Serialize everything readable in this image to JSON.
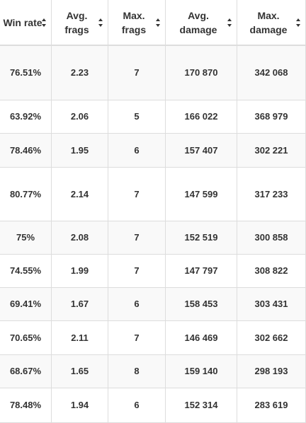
{
  "colors": {
    "win_rate": "#9c27b0",
    "averages": "#c84fd0",
    "max_values": "#333333",
    "border": "#dddddd",
    "stripe": "#f9f9f9"
  },
  "headers": [
    {
      "label": "Win rate",
      "icon": "sort-icon"
    },
    {
      "label": "Avg. frags",
      "icon": "sort-icon"
    },
    {
      "label": "Max. frags",
      "icon": "sort-icon"
    },
    {
      "label": "Avg. damage",
      "icon": "sort-icon"
    },
    {
      "label": "Max. damage",
      "icon": "sort-icon"
    }
  ],
  "rows": [
    {
      "win_rate": "76.51%",
      "avg_frags": "2.23",
      "max_frags": "7",
      "avg_damage": "170 870",
      "max_damage": "342 068"
    },
    {
      "win_rate": "63.92%",
      "avg_frags": "2.06",
      "max_frags": "5",
      "avg_damage": "166 022",
      "max_damage": "368 979"
    },
    {
      "win_rate": "78.46%",
      "avg_frags": "1.95",
      "max_frags": "6",
      "avg_damage": "157 407",
      "max_damage": "302 221"
    },
    {
      "win_rate": "80.77%",
      "avg_frags": "2.14",
      "max_frags": "7",
      "avg_damage": "147 599",
      "max_damage": "317 233"
    },
    {
      "win_rate": "75%",
      "avg_frags": "2.08",
      "max_frags": "7",
      "avg_damage": "152 519",
      "max_damage": "300 858"
    },
    {
      "win_rate": "74.55%",
      "avg_frags": "1.99",
      "max_frags": "7",
      "avg_damage": "147 797",
      "max_damage": "308 822"
    },
    {
      "win_rate": "69.41%",
      "avg_frags": "1.67",
      "max_frags": "6",
      "avg_damage": "158 453",
      "max_damage": "303 431"
    },
    {
      "win_rate": "70.65%",
      "avg_frags": "2.11",
      "max_frags": "7",
      "avg_damage": "146 469",
      "max_damage": "302 662"
    },
    {
      "win_rate": "68.67%",
      "avg_frags": "1.65",
      "max_frags": "8",
      "avg_damage": "159 140",
      "max_damage": "298 193"
    },
    {
      "win_rate": "78.48%",
      "avg_frags": "1.94",
      "max_frags": "6",
      "avg_damage": "152 314",
      "max_damage": "283 619"
    }
  ]
}
